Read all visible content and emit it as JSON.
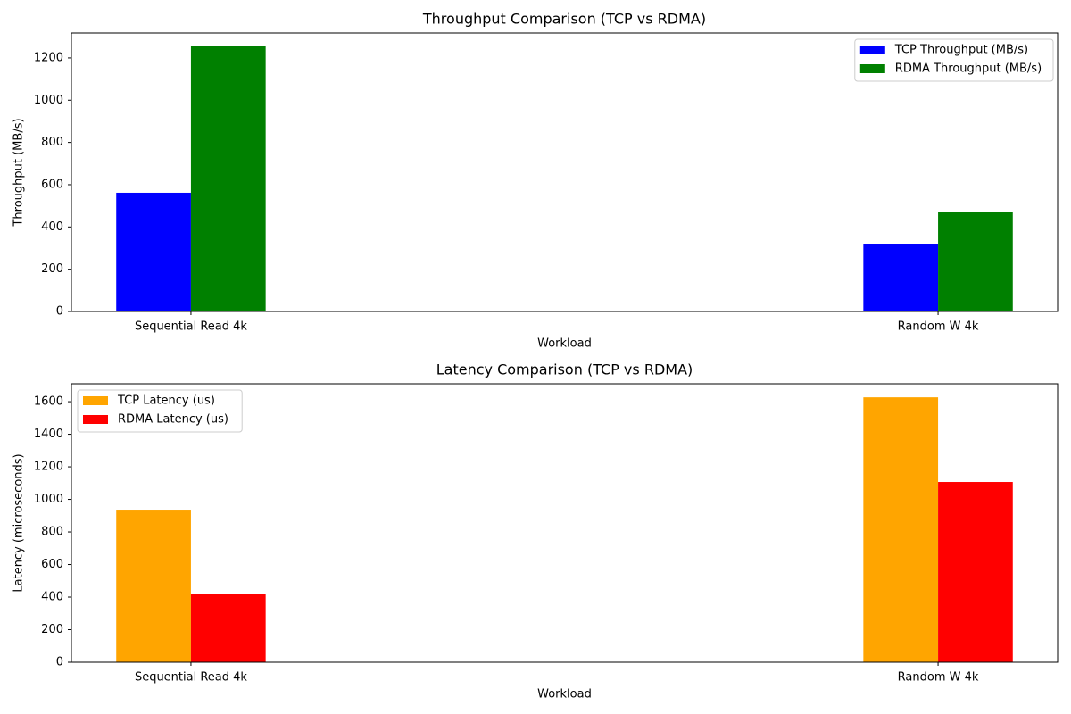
{
  "chart_data": [
    {
      "type": "bar",
      "title": "Throughput Comparison (TCP vs RDMA)",
      "x_label": "Workload",
      "y_label": "Throughput (MB/s)",
      "categories": [
        "Sequential Read 4k",
        "Random W 4k"
      ],
      "series": [
        {
          "name": "TCP Throughput (MB/s)",
          "color": "#0000ff",
          "values": [
            562,
            321
          ]
        },
        {
          "name": "RDMA Throughput (MB/s)",
          "color": "#008000",
          "values": [
            1255,
            473
          ]
        }
      ],
      "ylim": [
        0,
        1318
      ],
      "yticks": [
        0,
        200,
        400,
        600,
        800,
        1000,
        1200
      ],
      "legend": "upper right"
    },
    {
      "type": "bar",
      "title": "Latency Comparison (TCP vs RDMA)",
      "x_label": "Workload",
      "y_label": "Latency (microseconds)",
      "categories": [
        "Sequential Read 4k",
        "Random W 4k"
      ],
      "series": [
        {
          "name": "TCP Latency (us)",
          "color": "#ffa500",
          "values": [
            937,
            1627
          ]
        },
        {
          "name": "RDMA Latency (us)",
          "color": "#ff0000",
          "values": [
            422,
            1107
          ]
        }
      ],
      "ylim": [
        0,
        1710
      ],
      "yticks": [
        0,
        200,
        400,
        600,
        800,
        1000,
        1200,
        1400,
        1600
      ],
      "legend": "upper left"
    }
  ]
}
